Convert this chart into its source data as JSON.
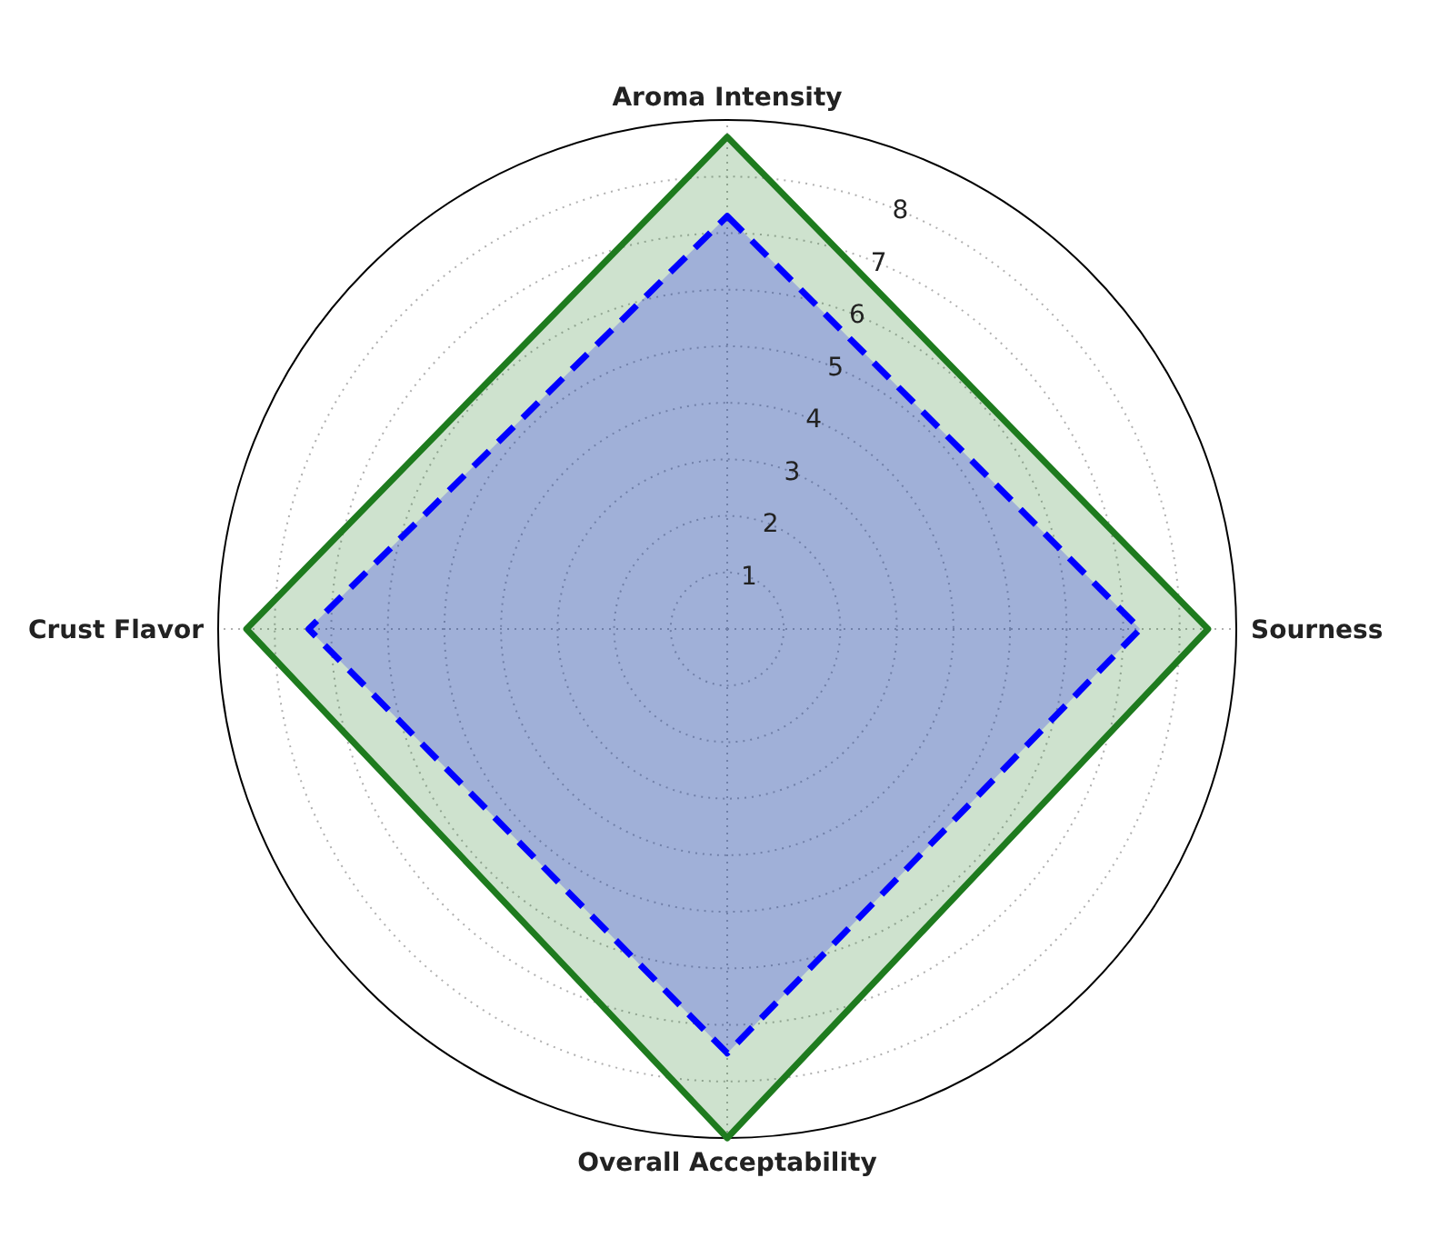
{
  "chart_data": {
    "type": "radar",
    "categories": [
      "Aroma Intensity",
      "Sourness",
      "Overall Acceptability",
      "Crust Flavor"
    ],
    "series": [
      {
        "color": "#1e7b1e",
        "values": [
          8.7,
          8.5,
          9.0,
          8.5
        ],
        "line_style": "solid"
      },
      {
        "color": "#0000ff",
        "values": [
          7.3,
          7.3,
          7.5,
          7.4
        ],
        "line_style": "dashed"
      }
    ],
    "ylim": [
      0,
      9
    ],
    "yticks": [
      1,
      2,
      3,
      4,
      5,
      6,
      7,
      8
    ],
    "grid": true
  }
}
